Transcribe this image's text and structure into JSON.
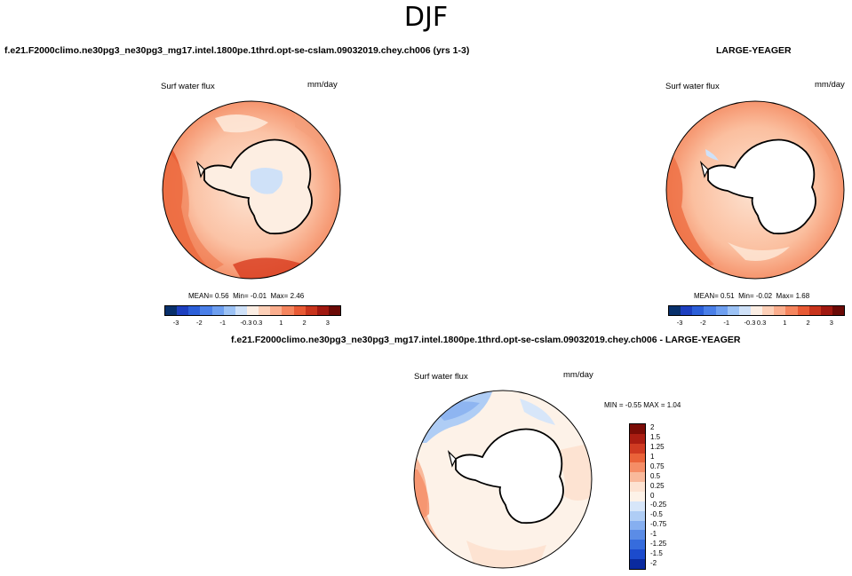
{
  "season": "DJF",
  "panels": {
    "test": {
      "case_title": "f.e21.F2000climo.ne30pg3_ne30pg3_mg17.intel.1800pe.1thrd.opt-se-cslam.09032019.chey.ch006 (yrs 1-3)",
      "variable": "Surf water flux",
      "units": "mm/day",
      "mean_label": "MEAN=",
      "mean": "0.56",
      "min_label": "Min=",
      "min": "-0.01",
      "max_label": "Max=",
      "max": "2.46"
    },
    "obs": {
      "case_title": "LARGE-YEAGER",
      "variable": "Surf water flux",
      "units": "mm/day",
      "mean_label": "MEAN=",
      "mean": "0.51",
      "min_label": "Min=",
      "min": "-0.02",
      "max_label": "Max=",
      "max": "1.68"
    },
    "diff": {
      "case_title": "f.e21.F2000climo.ne30pg3_ne30pg3_mg17.intel.1800pe.1thrd.opt-se-cslam.09032019.chey.ch006 - LARGE-YEAGER",
      "variable": "Surf water flux",
      "units": "mm/day",
      "min_label": "MIN =",
      "min": "-0.55",
      "max_label": "MAX =",
      "max": "1.04"
    }
  },
  "colorbar_main": {
    "colors": [
      "#08306b",
      "#1d3fbf",
      "#2c5fd8",
      "#4a7fe8",
      "#6e9ff0",
      "#9cc2f5",
      "#cfe1f8",
      "#fbeee4",
      "#fdd0b8",
      "#fbae8e",
      "#f5855e",
      "#e85a35",
      "#c8341c",
      "#a01810",
      "#6b0a06"
    ],
    "labels": [
      "-3",
      "-2",
      "-1",
      "-0.3",
      "0.3",
      "1",
      "2",
      "3"
    ]
  },
  "colorbar_diff": {
    "colors": [
      "#7b0c06",
      "#ab1d12",
      "#d03b22",
      "#ea6339",
      "#f58d66",
      "#f9b99b",
      "#fde3d2",
      "#fdf2e8",
      "#d7e6f9",
      "#afcdf5",
      "#86aff0",
      "#5b8ce6",
      "#366cdd",
      "#1c4bcd",
      "#0a2a9f"
    ],
    "labels": [
      "2",
      "1.5",
      "1.25",
      "1",
      "0.75",
      "0.5",
      "0.25",
      "0",
      "-0.25",
      "-0.5",
      "-0.75",
      "-1",
      "-1.25",
      "-1.5",
      "-2"
    ]
  }
}
